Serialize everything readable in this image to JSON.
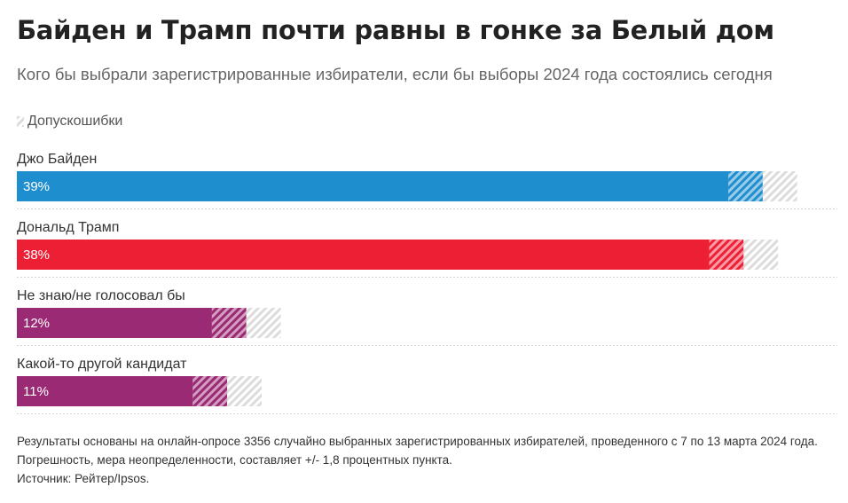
{
  "header": {
    "title": "Байден и Трамп почти равны в гонке за Белый дом",
    "subtitle": "Кого бы выбрали зарегистрированные избиратели, если бы выборы 2024 года состоялись сегодня"
  },
  "legend": {
    "label": "Допускошибки"
  },
  "chart_data": {
    "type": "bar",
    "orientation": "horizontal",
    "title": "Байден и Трамп почти равны в гонке за Белый дом",
    "subtitle": "Кого бы выбрали зарегистрированные избиратели, если бы выборы 2024 года состоялись сегодня",
    "categories": [
      "Джо Байден",
      "Дональд Трамп",
      "Не знаю/не голосовал бы",
      "Какой-то другой кандидат"
    ],
    "values": [
      39,
      38,
      12,
      11
    ],
    "value_labels": [
      "39%",
      "38%",
      "12%",
      "11%"
    ],
    "margin_of_error": 1.8,
    "colors": [
      "#1f8ecf",
      "#ed1f35",
      "#9b2a74",
      "#9b2a74"
    ],
    "error_color": "#dddddd",
    "unit": "%",
    "xlim": [
      0,
      42.9
    ],
    "grid": false,
    "axes_visible": false,
    "legend": [
      "Допускошибки"
    ],
    "legend_position": "top-left"
  },
  "footnote": {
    "text": "Результаты основаны на онлайн-опросе 3356 случайно выбранных зарегистрированных избирателей, проведенного с 7 по 13 марта 2024 года. Погрешность, мера неопределенности, составляет +/- 1,8 процентных пункта.",
    "source": "Источник: Рейтер/Ipsos."
  }
}
